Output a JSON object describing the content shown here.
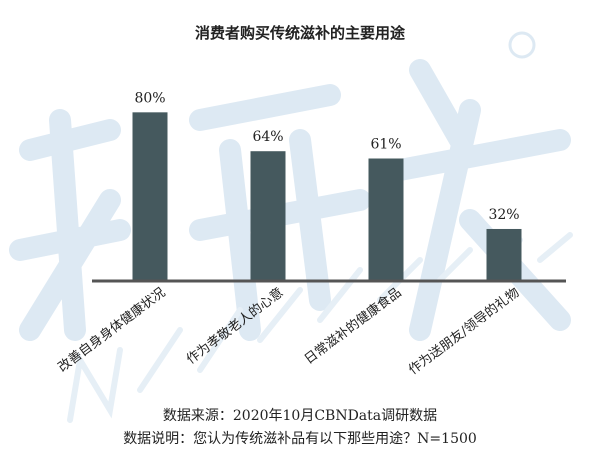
{
  "watermark": {
    "logo_cn": "新营养",
    "logo_en": "New Nutrition Business"
  },
  "chart_data": {
    "type": "bar",
    "title": "消费者购买传统滋补的主要用途",
    "categories": [
      "改善自身身体健康状况",
      "作为孝敬老人的心意",
      "日常滋补的健康食品",
      "作为送朋友/领导的礼物"
    ],
    "values": [
      80,
      64,
      61,
      32
    ],
    "data_labels": [
      "80%",
      "64%",
      "61%",
      "32%"
    ],
    "ylim": [
      11,
      90
    ],
    "grid": false,
    "bar_color": "#45595e",
    "axis_color": "#555555"
  },
  "footer": {
    "source": "数据来源：2020年10月CBNData调研数据",
    "note": "数据说明：您认为传统滋补品有以下那些用途？N=1500"
  }
}
